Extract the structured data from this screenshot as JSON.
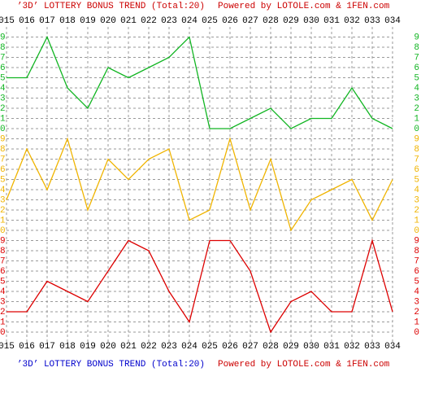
{
  "chart_data": {
    "type": "line",
    "title": "’3D’ LOTTERY BONUS TREND (Total:20)",
    "subtitle": "Powered by LOTOLE.com & 1FEN.com",
    "categories": [
      "015",
      "016",
      "017",
      "018",
      "019",
      "020",
      "021",
      "022",
      "023",
      "024",
      "025",
      "026",
      "027",
      "028",
      "029",
      "030",
      "031",
      "032",
      "033",
      "034"
    ],
    "series": [
      {
        "color": "#11b522",
        "values": [
          5,
          5,
          9,
          4,
          2,
          6,
          5,
          6,
          7,
          9,
          0,
          0,
          1,
          2,
          0,
          1,
          1,
          4,
          1,
          0
        ]
      },
      {
        "color": "#f0b400",
        "values": [
          3,
          8,
          4,
          9,
          2,
          7,
          5,
          7,
          8,
          1,
          2,
          9,
          2,
          7,
          0,
          3,
          4,
          5,
          1,
          5
        ]
      },
      {
        "color": "#dd0000",
        "values": [
          2,
          2,
          5,
          4,
          3,
          6,
          9,
          8,
          4,
          1,
          9,
          9,
          6,
          0,
          3,
          4,
          2,
          2,
          9,
          2
        ]
      }
    ],
    "ylim": [
      0,
      9
    ],
    "yticks": [
      0,
      1,
      2,
      3,
      4,
      5,
      6,
      7,
      8,
      9
    ],
    "grid": true
  }
}
